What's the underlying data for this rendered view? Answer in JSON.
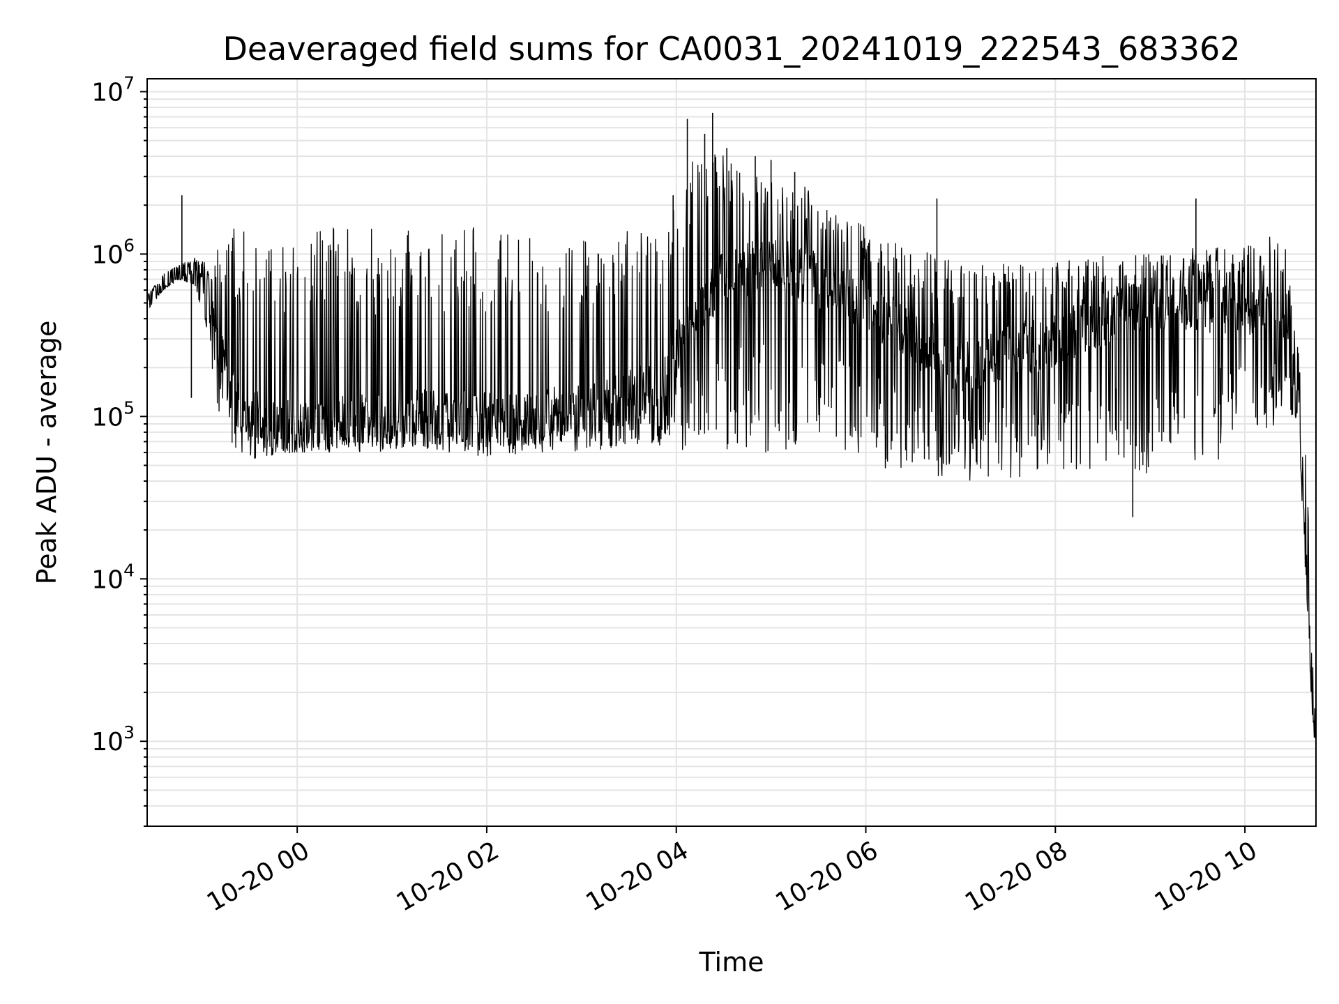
{
  "chart_data": {
    "type": "line",
    "title": "Deaveraged field sums for CA0031_20241019_222543_683362",
    "xlabel": "Time",
    "ylabel": "Peak ADU - average",
    "x_scale": "time",
    "y_scale": "log",
    "xlim": [
      "2024-10-19T22:25",
      "2024-10-20T10:45"
    ],
    "ylim": [
      300,
      12000000
    ],
    "grid": true,
    "line_color": "#000000",
    "grid_color": "#e4e4e4",
    "x_ticks": [
      {
        "x": "2024-10-20T00:00",
        "label": "10-20 00"
      },
      {
        "x": "2024-10-20T02:00",
        "label": "10-20 02"
      },
      {
        "x": "2024-10-20T04:00",
        "label": "10-20 04"
      },
      {
        "x": "2024-10-20T06:00",
        "label": "10-20 06"
      },
      {
        "x": "2024-10-20T08:00",
        "label": "10-20 08"
      },
      {
        "x": "2024-10-20T10:00",
        "label": "10-20 10"
      }
    ],
    "y_ticks": [
      {
        "value": 1000,
        "base": "10",
        "exp": "3"
      },
      {
        "value": 10000,
        "base": "10",
        "exp": "4"
      },
      {
        "value": 100000,
        "base": "10",
        "exp": "5"
      },
      {
        "value": 1000000,
        "base": "10",
        "exp": "6"
      },
      {
        "value": 10000000,
        "base": "10",
        "exp": "7"
      }
    ],
    "series": [
      {
        "envelope": {
          "x": [
            "2024-10-19T22:25",
            "2024-10-19T22:35",
            "2024-10-19T22:45",
            "2024-10-19T22:55",
            "2024-10-19T23:00",
            "2024-10-19T23:05",
            "2024-10-19T23:10",
            "2024-10-19T23:20",
            "2024-10-19T23:30",
            "2024-10-19T23:45",
            "2024-10-20T00:00",
            "2024-10-20T00:30",
            "2024-10-20T01:00",
            "2024-10-20T01:30",
            "2024-10-20T02:00",
            "2024-10-20T02:30",
            "2024-10-20T03:00",
            "2024-10-20T03:30",
            "2024-10-20T03:50",
            "2024-10-20T04:00",
            "2024-10-20T04:15",
            "2024-10-20T04:30",
            "2024-10-20T04:45",
            "2024-10-20T05:00",
            "2024-10-20T05:30",
            "2024-10-20T06:00",
            "2024-10-20T06:30",
            "2024-10-20T07:00",
            "2024-10-20T07:30",
            "2024-10-20T08:00",
            "2024-10-20T08:30",
            "2024-10-20T09:00",
            "2024-10-20T09:30",
            "2024-10-20T10:00",
            "2024-10-20T10:15",
            "2024-10-20T10:25",
            "2024-10-20T10:30",
            "2024-10-20T10:35",
            "2024-10-20T10:38",
            "2024-10-20T10:41",
            "2024-10-20T10:43",
            "2024-10-20T10:45"
          ],
          "baseline": [
            500000,
            650000,
            750000,
            800000,
            700000,
            400000,
            250000,
            130000,
            100000,
            90000,
            85000,
            90000,
            95000,
            100000,
            95000,
            100000,
            110000,
            130000,
            150000,
            250000,
            500000,
            700000,
            800000,
            900000,
            700000,
            500000,
            300000,
            200000,
            250000,
            300000,
            400000,
            500000,
            500000,
            450000,
            450000,
            300000,
            200000,
            80000,
            20000,
            5000,
            1500,
            1100
          ],
          "low": [
            450000,
            600000,
            700000,
            650000,
            400000,
            200000,
            110000,
            60000,
            55000,
            55000,
            60000,
            60000,
            60000,
            60000,
            55000,
            60000,
            60000,
            60000,
            65000,
            60000,
            60000,
            60000,
            60000,
            60000,
            55000,
            50000,
            45000,
            40000,
            40000,
            45000,
            40000,
            45000,
            50000,
            60000,
            80000,
            100000,
            80000,
            50000,
            12000,
            3000,
            1100,
            1000
          ],
          "high": [
            550000,
            750000,
            850000,
            950000,
            900000,
            900000,
            1400000,
            1500000,
            1500000,
            1500000,
            1500000,
            1500000,
            1400000,
            1400000,
            1500000,
            1400000,
            1400000,
            1400000,
            1400000,
            2000000,
            5000000,
            4500000,
            3000000,
            3000000,
            2500000,
            1500000,
            1100000,
            900000,
            900000,
            900000,
            1000000,
            1000000,
            1100000,
            1100000,
            1300000,
            1200000,
            600000,
            200000,
            100000,
            25000,
            3000,
            1200
          ]
        },
        "spikes": [
          {
            "x": "2024-10-19T22:47",
            "y": 2300000
          },
          {
            "x": "2024-10-19T22:53",
            "y": 130000
          },
          {
            "x": "2024-10-20T03:58",
            "y": 2300000
          },
          {
            "x": "2024-10-20T04:07",
            "y": 6800000
          },
          {
            "x": "2024-10-20T04:18",
            "y": 5500000
          },
          {
            "x": "2024-10-20T04:23",
            "y": 7400000
          },
          {
            "x": "2024-10-20T04:32",
            "y": 4500000
          },
          {
            "x": "2024-10-20T04:50",
            "y": 4000000
          },
          {
            "x": "2024-10-20T05:00",
            "y": 3800000
          },
          {
            "x": "2024-10-20T05:15",
            "y": 3200000
          },
          {
            "x": "2024-10-20T06:45",
            "y": 2200000
          },
          {
            "x": "2024-10-20T08:49",
            "y": 24000
          },
          {
            "x": "2024-10-20T09:29",
            "y": 2200000
          }
        ]
      }
    ]
  }
}
